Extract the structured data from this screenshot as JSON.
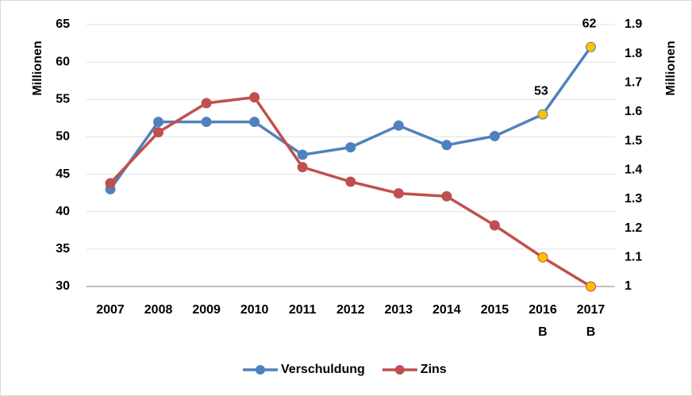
{
  "chart_data": {
    "type": "line",
    "categories": [
      "2007",
      "2008",
      "2009",
      "2010",
      "2011",
      "2012",
      "2013",
      "2014",
      "2015",
      "2016\nB",
      "2017\nB"
    ],
    "series": [
      {
        "name": "Verschuldung",
        "color": "#4f81bd",
        "axis": "y",
        "values": [
          43,
          52,
          52,
          52,
          47.6,
          48.6,
          51.5,
          48.9,
          50.1,
          53,
          62
        ],
        "value_labels": [
          null,
          null,
          null,
          null,
          null,
          null,
          null,
          null,
          null,
          "53",
          "62"
        ],
        "point_colors": [
          "#4f81bd",
          "#4f81bd",
          "#4f81bd",
          "#4f81bd",
          "#4f81bd",
          "#4f81bd",
          "#4f81bd",
          "#4f81bd",
          "#4f81bd",
          "#ffc000",
          "#ffc000"
        ]
      },
      {
        "name": "Zins",
        "color": "#c0504d",
        "axis": "y2",
        "values": [
          1.355,
          1.53,
          1.63,
          1.65,
          1.41,
          1.36,
          1.32,
          1.31,
          1.21,
          1.1,
          1.0
        ],
        "point_colors": [
          "#c0504d",
          "#c0504d",
          "#c0504d",
          "#c0504d",
          "#c0504d",
          "#c0504d",
          "#c0504d",
          "#c0504d",
          "#c0504d",
          "#ffc000",
          "#ffc000"
        ]
      }
    ],
    "ylabel": "Millionen",
    "y2label": "Millionen",
    "ylim": [
      30,
      65
    ],
    "yticks": [
      30,
      35,
      40,
      45,
      50,
      55,
      60,
      65
    ],
    "y2lim": [
      1,
      1.9
    ],
    "y2ticks": [
      1,
      1.1,
      1.2,
      1.3,
      1.4,
      1.5,
      1.6,
      1.7,
      1.8,
      1.9
    ],
    "grid": true,
    "legend": "bottom"
  }
}
